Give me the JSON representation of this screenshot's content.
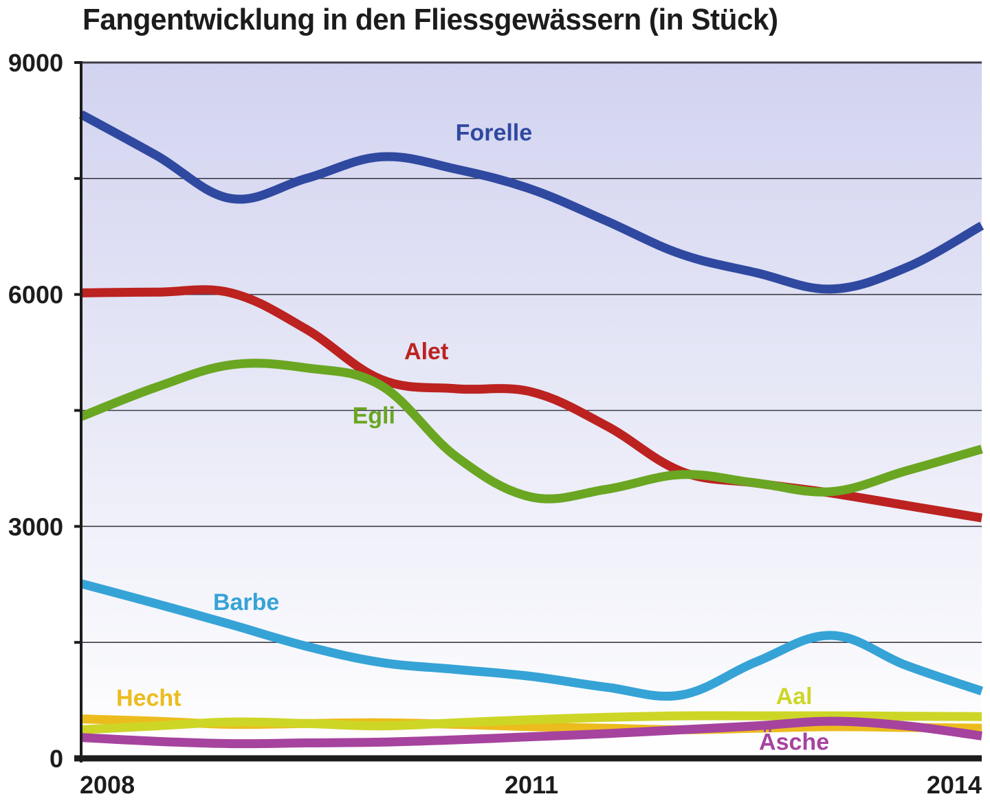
{
  "chart_data": {
    "type": "line",
    "title": "Fangentwicklung in den Fliessgewässern (in Stück)",
    "xlabel": "",
    "ylabel": "",
    "x": [
      2008,
      2008.5,
      2009,
      2009.5,
      2010,
      2010.5,
      2011,
      2011.5,
      2012,
      2012.5,
      2013,
      2013.5,
      2014
    ],
    "xlim": [
      2008,
      2014
    ],
    "ylim": [
      0,
      9000
    ],
    "x_ticks": [
      2008,
      2011,
      2014
    ],
    "x_tick_labels": [
      "2008",
      "2011",
      "2014"
    ],
    "y_ticks": [
      0,
      1500,
      3000,
      4500,
      6000,
      7500,
      9000
    ],
    "y_tick_labels": [
      "0",
      "",
      "3000",
      "",
      "6000",
      "",
      "9000"
    ],
    "grid": "horizontal",
    "background": "gradient lavender (top) to white (bottom)",
    "legend": "inline labels",
    "series": [
      {
        "name": "Forelle",
        "color": "#2f49a0",
        "values": [
          8330,
          7800,
          7240,
          7500,
          7780,
          7620,
          7360,
          6950,
          6520,
          6280,
          6070,
          6350,
          6890
        ]
      },
      {
        "name": "Alet",
        "color": "#bc2220",
        "values": [
          6020,
          6030,
          6020,
          5550,
          4900,
          4780,
          4740,
          4300,
          3710,
          3560,
          3430,
          3270,
          3110
        ]
      },
      {
        "name": "Egli",
        "color": "#6aa622",
        "values": [
          4420,
          4800,
          5090,
          5050,
          4820,
          3900,
          3380,
          3480,
          3670,
          3560,
          3450,
          3720,
          4000
        ]
      },
      {
        "name": "Barbe",
        "color": "#36a3d6",
        "values": [
          2260,
          2000,
          1730,
          1450,
          1240,
          1150,
          1060,
          920,
          820,
          1250,
          1590,
          1200,
          870
        ]
      },
      {
        "name": "Hecht",
        "color": "#ecbc1e",
        "values": [
          510,
          480,
          440,
          450,
          460,
          440,
          410,
          390,
          370,
          390,
          410,
          400,
          390
        ]
      },
      {
        "name": "Aal",
        "color": "#cdd626",
        "values": [
          370,
          420,
          470,
          450,
          420,
          460,
          500,
          530,
          550,
          550,
          550,
          545,
          540
        ]
      },
      {
        "name": "Äsche",
        "color": "#a6439e",
        "values": [
          270,
          220,
          190,
          200,
          210,
          240,
          280,
          320,
          370,
          420,
          480,
          420,
          290
        ]
      }
    ],
    "labels": [
      {
        "series": "Forelle",
        "text": "Forelle",
        "x": 2010.75,
        "y": 7990
      },
      {
        "series": "Alet",
        "text": "Alet",
        "x": 2010.3,
        "y": 5160
      },
      {
        "series": "Egli",
        "text": "Egli",
        "x": 2009.95,
        "y": 4330
      },
      {
        "series": "Barbe",
        "text": "Barbe",
        "x": 2009.1,
        "y": 1920
      },
      {
        "series": "Hecht",
        "text": "Hecht",
        "x": 2008.45,
        "y": 680
      },
      {
        "series": "Aal",
        "text": "Aal",
        "x": 2012.75,
        "y": 700
      },
      {
        "series": "Äsche",
        "text": "Äsche",
        "x": 2012.75,
        "y": 110
      }
    ]
  }
}
